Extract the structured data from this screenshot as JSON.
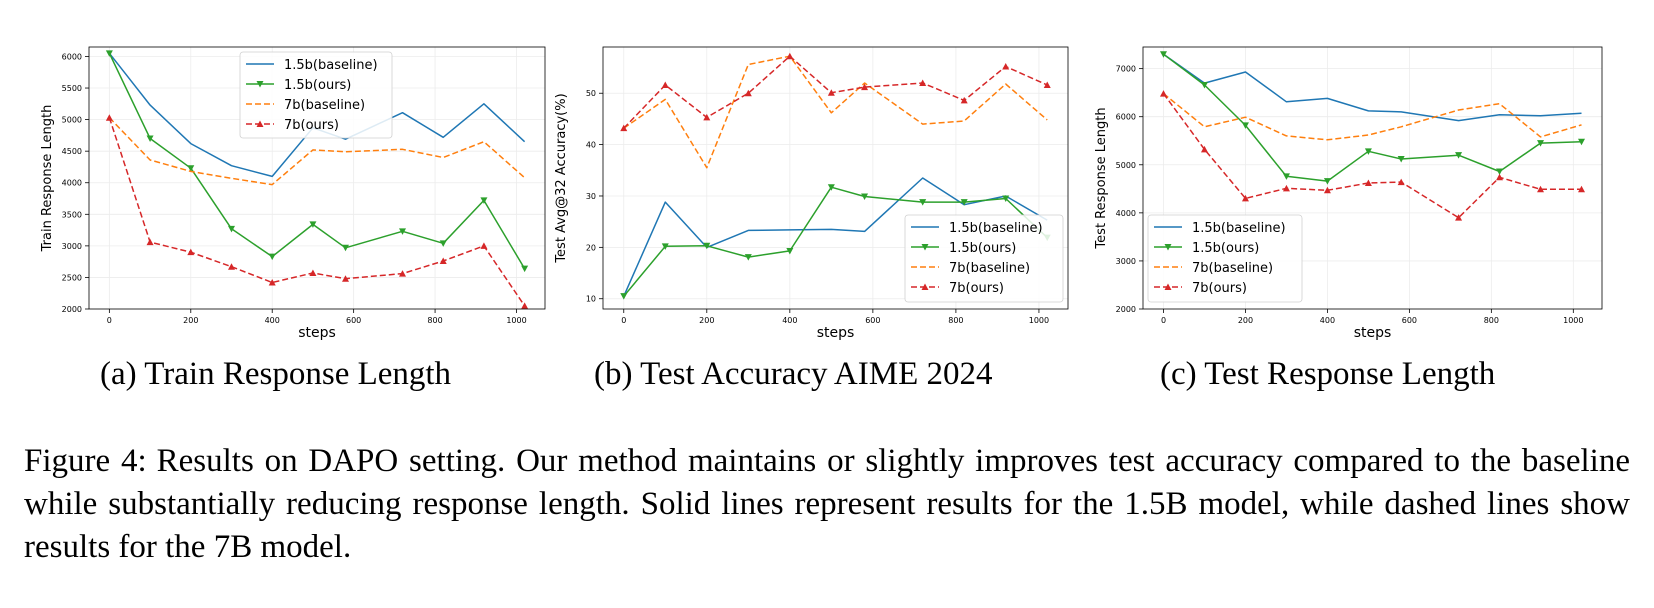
{
  "chart_data": [
    {
      "type": "line",
      "id": "a",
      "title": "Train Response Length",
      "xlabel": "steps",
      "ylabel": "Train Response Length",
      "xlim": [
        -50,
        1070
      ],
      "ylim": [
        2000,
        6150
      ],
      "xticks": [
        0,
        200,
        400,
        600,
        800,
        1000
      ],
      "yticks": [
        2000,
        2500,
        3000,
        3500,
        4000,
        4500,
        5000,
        5500,
        6000
      ],
      "legend": "top-center",
      "series": [
        {
          "name": "1.5b(baseline)",
          "color": "#1f77b4",
          "dash": false,
          "marker": "none",
          "x": [
            0,
            100,
            200,
            300,
            400,
            500,
            580,
            720,
            820,
            920,
            1020
          ],
          "y": [
            6050,
            5230,
            4620,
            4270,
            4100,
            4870,
            4690,
            5110,
            4720,
            5250,
            4650
          ]
        },
        {
          "name": "1.5b(ours)",
          "color": "#2ca02c",
          "dash": false,
          "marker": "down",
          "x": [
            0,
            100,
            200,
            300,
            400,
            500,
            580,
            720,
            820,
            920,
            1020
          ],
          "y": [
            6050,
            4700,
            4230,
            3270,
            2830,
            3340,
            2970,
            3230,
            3040,
            3720,
            2640
          ]
        },
        {
          "name": "7b(baseline)",
          "color": "#ff7f0e",
          "dash": true,
          "marker": "none",
          "x": [
            0,
            100,
            200,
            300,
            400,
            500,
            580,
            720,
            820,
            920,
            1020
          ],
          "y": [
            5030,
            4360,
            4180,
            4070,
            3970,
            4520,
            4490,
            4530,
            4400,
            4650,
            4080
          ]
        },
        {
          "name": "7b(ours)",
          "color": "#d62728",
          "dash": true,
          "marker": "up",
          "x": [
            0,
            100,
            200,
            300,
            400,
            500,
            580,
            720,
            820,
            920,
            1020
          ],
          "y": [
            5030,
            3060,
            2900,
            2670,
            2420,
            2570,
            2480,
            2560,
            2760,
            3000,
            2050
          ]
        }
      ]
    },
    {
      "type": "line",
      "id": "b",
      "title": "Test Accuracy AIME 2024",
      "xlabel": "steps",
      "ylabel": "Test Avg@32 Accuracy(%)",
      "xlim": [
        -50,
        1070
      ],
      "ylim": [
        8,
        59
      ],
      "xticks": [
        0,
        200,
        400,
        600,
        800,
        1000
      ],
      "yticks": [
        10,
        20,
        30,
        40,
        50
      ],
      "legend": "lower-right",
      "series": [
        {
          "name": "1.5b(baseline)",
          "color": "#1f77b4",
          "dash": false,
          "marker": "none",
          "x": [
            0,
            100,
            200,
            300,
            400,
            500,
            580,
            720,
            820,
            920,
            1020
          ],
          "y": [
            10.5,
            28.8,
            20.0,
            23.3,
            23.4,
            23.5,
            23.1,
            33.5,
            28.3,
            30.0,
            25.3
          ]
        },
        {
          "name": "1.5b(ours)",
          "color": "#2ca02c",
          "dash": false,
          "marker": "down",
          "x": [
            0,
            100,
            200,
            300,
            400,
            500,
            580,
            720,
            820,
            920,
            1020
          ],
          "y": [
            10.5,
            20.2,
            20.3,
            18.1,
            19.3,
            31.7,
            29.9,
            28.8,
            28.8,
            29.5,
            21.9
          ]
        },
        {
          "name": "7b(baseline)",
          "color": "#ff7f0e",
          "dash": true,
          "marker": "none",
          "x": [
            0,
            100,
            200,
            300,
            400,
            500,
            580,
            720,
            820,
            920,
            1020
          ],
          "y": [
            43.2,
            48.8,
            35.5,
            55.6,
            57.2,
            46.2,
            52.0,
            44.0,
            44.6,
            51.8,
            44.8
          ]
        },
        {
          "name": "7b(ours)",
          "color": "#d62728",
          "dash": true,
          "marker": "up",
          "x": [
            0,
            100,
            200,
            300,
            400,
            500,
            580,
            720,
            820,
            920,
            1020
          ],
          "y": [
            43.2,
            51.6,
            45.3,
            50.0,
            57.2,
            50.1,
            51.2,
            52.0,
            48.6,
            55.2,
            51.6
          ]
        }
      ]
    },
    {
      "type": "line",
      "id": "c",
      "title": "Test Response Length",
      "xlabel": "steps",
      "ylabel": "Test Response Length",
      "xlim": [
        -50,
        1070
      ],
      "ylim": [
        2000,
        7450
      ],
      "xticks": [
        0,
        200,
        400,
        600,
        800,
        1000
      ],
      "yticks": [
        2000,
        3000,
        4000,
        5000,
        6000,
        7000
      ],
      "legend": "lower-left",
      "series": [
        {
          "name": "1.5b(baseline)",
          "color": "#1f77b4",
          "dash": false,
          "marker": "none",
          "x": [
            0,
            100,
            200,
            300,
            400,
            500,
            580,
            720,
            820,
            920,
            1020
          ],
          "y": [
            7300,
            6700,
            6930,
            6310,
            6380,
            6120,
            6100,
            5920,
            6040,
            6020,
            6070
          ]
        },
        {
          "name": "1.5b(ours)",
          "color": "#2ca02c",
          "dash": false,
          "marker": "down",
          "x": [
            0,
            100,
            200,
            300,
            400,
            500,
            580,
            720,
            820,
            920,
            1020
          ],
          "y": [
            7300,
            6660,
            5820,
            4760,
            4660,
            5280,
            5120,
            5200,
            4860,
            5450,
            5480
          ]
        },
        {
          "name": "7b(baseline)",
          "color": "#ff7f0e",
          "dash": true,
          "marker": "none",
          "x": [
            0,
            100,
            200,
            300,
            400,
            500,
            580,
            720,
            820,
            920,
            1020
          ],
          "y": [
            6480,
            5790,
            5990,
            5600,
            5520,
            5620,
            5790,
            6140,
            6270,
            5580,
            5830
          ]
        },
        {
          "name": "7b(ours)",
          "color": "#d62728",
          "dash": true,
          "marker": "up",
          "x": [
            0,
            100,
            200,
            300,
            400,
            500,
            580,
            720,
            820,
            920,
            1020
          ],
          "y": [
            6480,
            5320,
            4300,
            4510,
            4470,
            4620,
            4640,
            3900,
            4740,
            4490,
            4490
          ]
        }
      ]
    }
  ],
  "subcaptions": [
    {
      "label": "(a)",
      "text": "Train Response Length"
    },
    {
      "label": "(b)",
      "text": "Test Accuracy AIME 2024"
    },
    {
      "label": "(c)",
      "text": "Test Response Length"
    }
  ],
  "figure_caption": {
    "prefix": "Figure 4:",
    "text": "Results on DAPO setting. Our method maintains or slightly improves test accuracy compared to the baseline while substantially reducing response length. Solid lines represent results for the 1.5B model, while dashed lines show results for the 7B model."
  }
}
